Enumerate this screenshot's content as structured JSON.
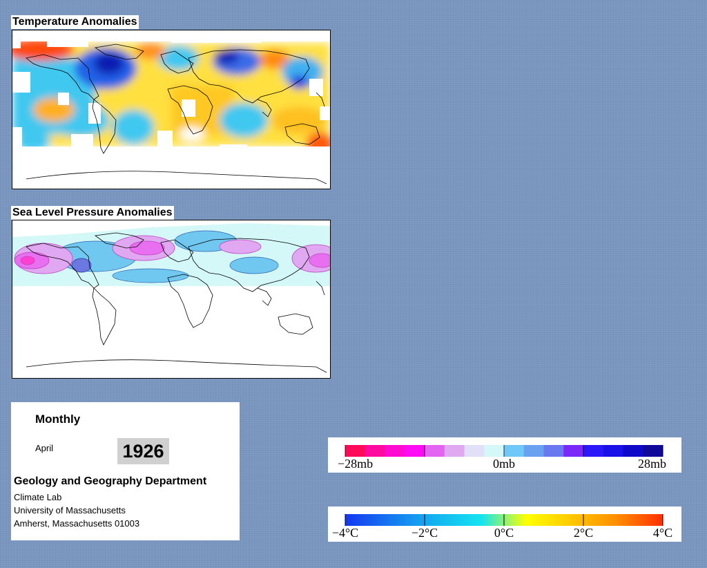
{
  "temperature_panel": {
    "title": "Temperature Anomalies"
  },
  "pressure_panel": {
    "title": "Sea Level Pressure Anomalies"
  },
  "info": {
    "frequency": "Monthly",
    "month": "April",
    "year": "1926",
    "department": "Geology and Geography Department",
    "lab": "Climate Lab",
    "university": "University of Massachusetts",
    "address": "Amherst, Massachusetts 01003"
  },
  "pressure_scale": {
    "labels": [
      "−28mb",
      "0mb",
      "28mb"
    ],
    "colors": [
      "#ff0a5a",
      "#ff0a9e",
      "#ff0ad0",
      "#ff0af5",
      "#e264f0",
      "#e0a8f0",
      "#e0e0f8",
      "#d4f8f8",
      "#70c8f8",
      "#6aa0f0",
      "#6a78f0",
      "#7a28f8",
      "#2a18f8",
      "#1a10e8",
      "#1008c8",
      "#100898"
    ]
  },
  "temperature_scale": {
    "labels": [
      "−4°C",
      "−2°C",
      "0°C",
      "2°C",
      "4°C"
    ],
    "colors": [
      "#1438f0",
      "#1478f0",
      "#14b4f0",
      "#14e4f0",
      "#ffff00",
      "#ffc800",
      "#ff8c00",
      "#ff3000"
    ]
  }
}
